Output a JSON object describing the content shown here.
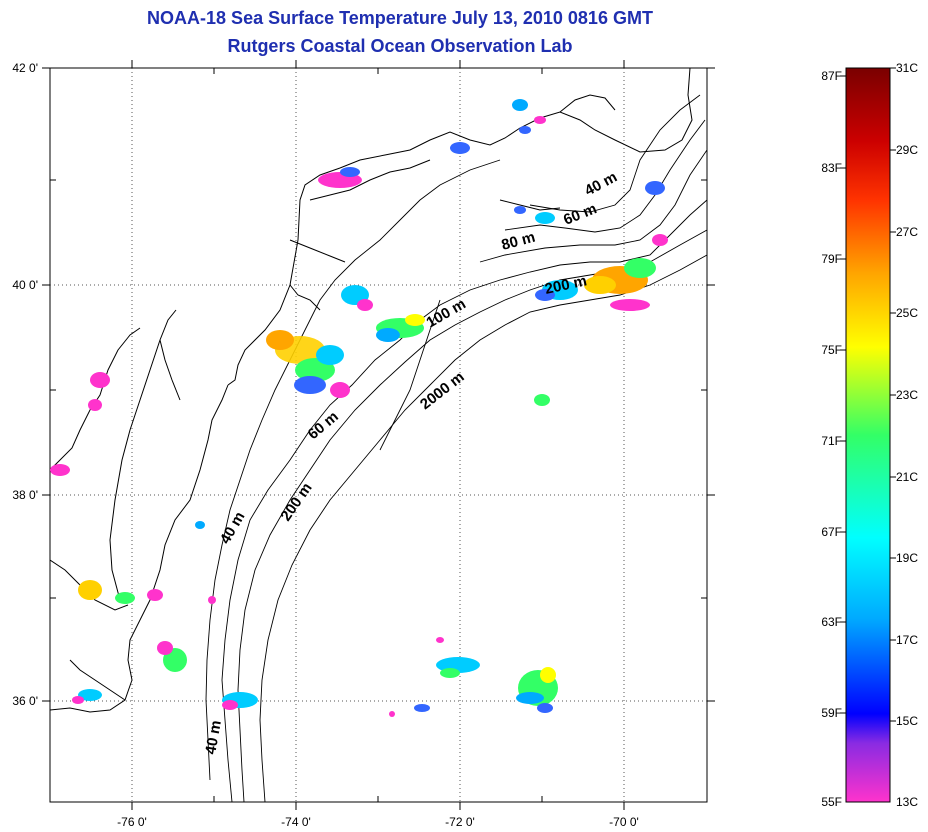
{
  "title": {
    "line1": "NOAA-18 Sea Surface Temperature July 13, 2010 0816 GMT",
    "line2": "Rutgers Coastal Ocean Observation Lab"
  },
  "axes": {
    "lat_ticks": [
      "42 0'",
      "40 0'",
      "38 0'",
      "36 0'"
    ],
    "lon_ticks": [
      "-76 0'",
      "-74 0'",
      "-72 0'",
      "-70 0'"
    ]
  },
  "colorbar": {
    "fahrenheit": [
      "87F",
      "83F",
      "79F",
      "75F",
      "71F",
      "67F",
      "63F",
      "59F",
      "55F"
    ],
    "celsius": [
      "31C",
      "29C",
      "27C",
      "25C",
      "23C",
      "21C",
      "19C",
      "17C",
      "15C",
      "13C"
    ],
    "colors": [
      "#ff33cc",
      "#8a2be2",
      "#0000ff",
      "#00aaff",
      "#00ffff",
      "#33ff66",
      "#ffff00",
      "#ffa500",
      "#ff3300",
      "#cc0000",
      "#7a0000"
    ]
  },
  "isobaths": {
    "shelf_labels": [
      "40 m",
      "60 m",
      "80 m",
      "100 m",
      "200 m",
      "2000 m"
    ],
    "south_labels": [
      "60 m",
      "40 m",
      "200 m",
      "40 m"
    ]
  }
}
